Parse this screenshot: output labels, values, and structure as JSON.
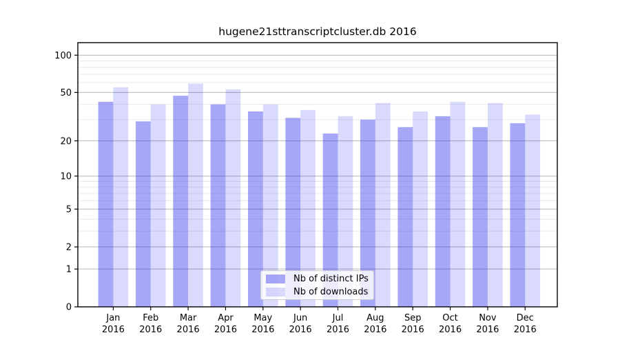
{
  "chart_data": {
    "type": "bar",
    "title": "hugene21sttranscriptcluster.db 2016",
    "year_label": "2016",
    "categories": [
      "Jan",
      "Feb",
      "Mar",
      "Apr",
      "May",
      "Jun",
      "Jul",
      "Aug",
      "Sep",
      "Oct",
      "Nov",
      "Dec"
    ],
    "series": [
      {
        "name": "Nb of distinct IPs",
        "base_color": "#2222ee",
        "opacity": 0.4,
        "values": [
          42,
          29,
          47,
          40,
          35,
          31,
          23,
          30,
          26,
          32,
          26,
          28
        ]
      },
      {
        "name": "Nb of downloads",
        "base_color": "#2222ee",
        "opacity": 0.17,
        "values": [
          55,
          40,
          59,
          53,
          40,
          36,
          32,
          41,
          35,
          42,
          41,
          33
        ]
      }
    ],
    "yscale": "log10(value+1)",
    "ylim": [
      0,
      126
    ],
    "yticks_major": [
      100,
      50,
      20,
      10,
      5,
      2,
      1,
      0
    ],
    "yticks_minor": [
      3,
      4,
      6,
      7,
      8,
      9,
      30,
      40,
      60,
      70,
      80,
      90
    ],
    "grid": true,
    "legend_position": "bottom-center",
    "axis_color": "#000000",
    "grid_major_color": "#b4b4b4",
    "grid_minor_color": "#e9e9e9"
  }
}
